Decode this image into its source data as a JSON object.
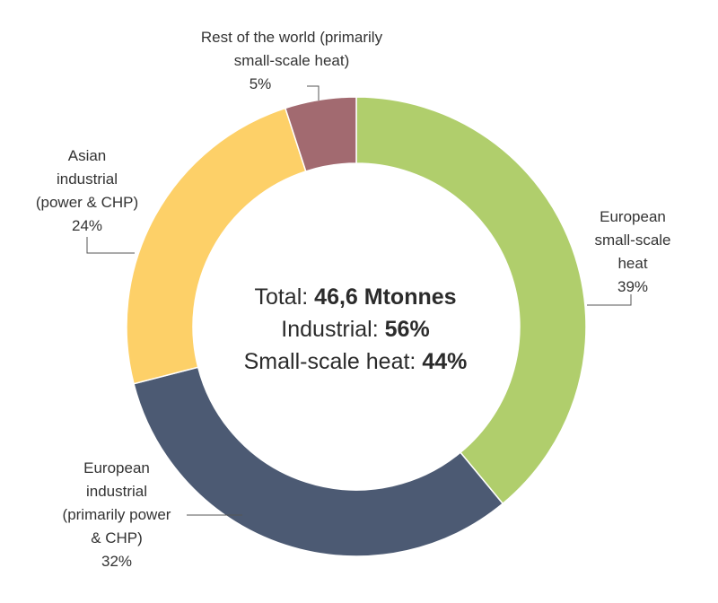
{
  "chart_data": {
    "type": "pie",
    "variant": "donut",
    "slices": [
      {
        "label": "European small-scale heat",
        "value": 39,
        "pct_label": "39%",
        "color": "#b0ce6c"
      },
      {
        "label": "European industrial (primarily power & CHP)",
        "value": 32,
        "pct_label": "32%",
        "color": "#4c5a73"
      },
      {
        "label": "Asian industrial (power & CHP)",
        "value": 24,
        "pct_label": "24%",
        "color": "#fdd068"
      },
      {
        "label": "Rest of the world (primarily small-scale heat)",
        "value": 5,
        "pct_label": "5%",
        "color": "#a26a70"
      }
    ],
    "labels": {
      "european_small_scale": [
        "European",
        "small-scale",
        "heat",
        "39%"
      ],
      "european_industrial": [
        "European",
        "industrial",
        "(primarily power",
        "& CHP)",
        "32%"
      ],
      "asian_industrial": [
        "Asian",
        "industrial",
        "(power & CHP)",
        "24%"
      ],
      "rest_of_world": [
        "Rest of the world (primarily",
        "small-scale heat)",
        "5%"
      ]
    },
    "center": {
      "total_label": "Total:",
      "total_value": "46,6 Mtonnes",
      "industrial_label": "Industrial:",
      "industrial_value": "56%",
      "heat_label": "Small-scale heat:",
      "heat_value": "44%"
    }
  }
}
